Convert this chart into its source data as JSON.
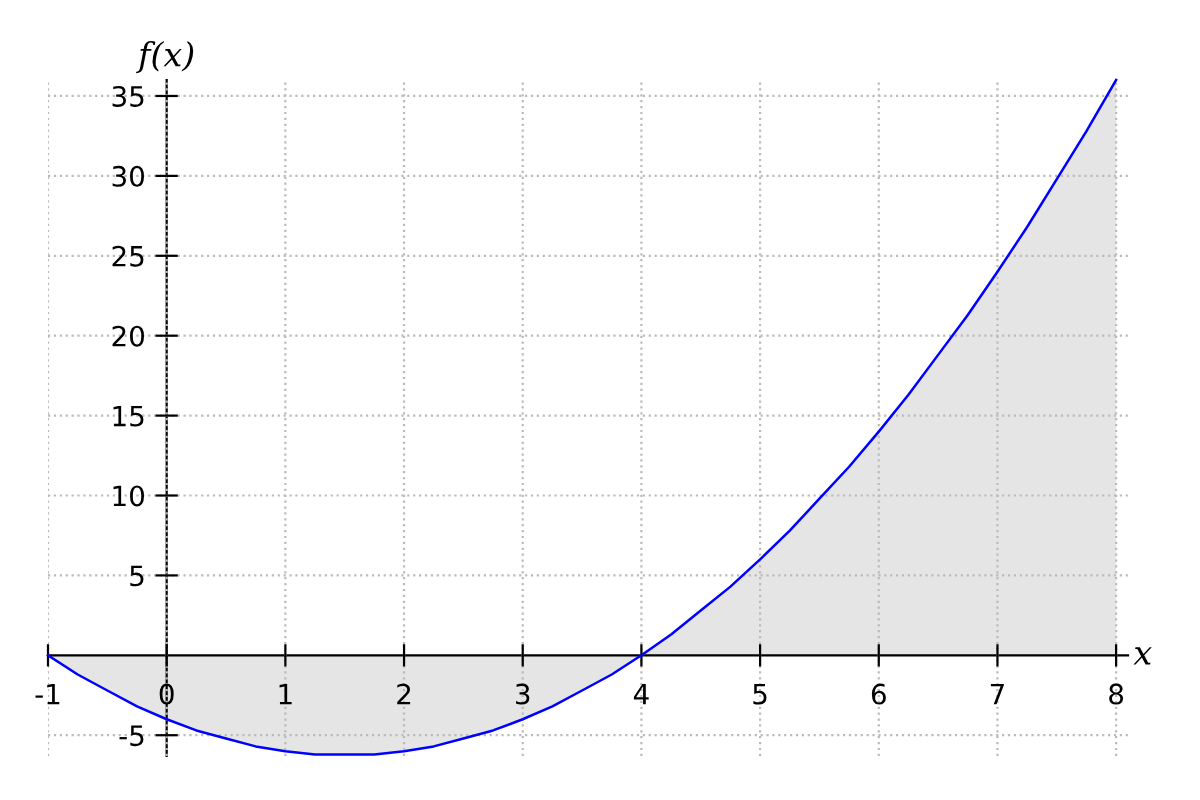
{
  "chart_data": {
    "type": "area",
    "xlabel": "x",
    "ylabel": "f(x)",
    "x": [
      -1,
      -0.75,
      -0.5,
      -0.25,
      0,
      0.25,
      0.5,
      0.75,
      1,
      1.25,
      1.5,
      1.75,
      2,
      2.25,
      2.5,
      2.75,
      3,
      3.25,
      3.5,
      3.75,
      4,
      4.25,
      4.5,
      4.75,
      5,
      5.25,
      5.5,
      5.75,
      6,
      6.25,
      6.5,
      6.75,
      7,
      7.25,
      7.5,
      7.75,
      8
    ],
    "series": [
      {
        "color": "#0000ff",
        "values": [
          0,
          -1.2,
          -2.2,
          -3.2,
          -4,
          -4.7,
          -5.2,
          -5.7,
          -6,
          -6.2,
          -6.2,
          -6.2,
          -6,
          -5.7,
          -5.2,
          -4.7,
          -4,
          -3.2,
          -2.2,
          -1.2,
          0,
          1.3,
          2.8,
          4.3,
          6,
          7.8,
          9.8,
          11.8,
          14,
          16.3,
          18.8,
          21.3,
          24,
          26.8,
          29.8,
          32.8,
          36
        ]
      }
    ],
    "xlim": [
      -1,
      8.1
    ],
    "ylim": [
      -6.3,
      36
    ],
    "xticks": [
      -1,
      0,
      1,
      2,
      3,
      4,
      5,
      6,
      7,
      8
    ],
    "yticks": [
      -5,
      5,
      10,
      15,
      20,
      25,
      30,
      35
    ],
    "grid": true,
    "marker": "none",
    "line_style": "solid"
  }
}
